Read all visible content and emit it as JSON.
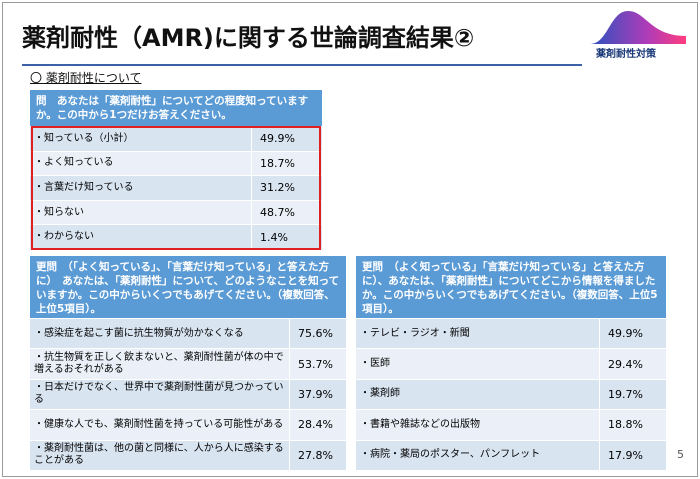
{
  "header": {
    "title": "薬剤耐性（AMR)に関する世論調査結果②",
    "logo_text": "薬剤耐性対策"
  },
  "section": "〇 薬剤耐性について",
  "tables": [
    {
      "question": "問　あなたは「薬剤耐性」についてどの程度知っていますか。この中から1つだけお答えください。",
      "rows": [
        [
          "・知っている（小計）",
          "49.9%"
        ],
        [
          "・よく知っている",
          "18.7%"
        ],
        [
          "・言葉だけ知っている",
          "31.2%"
        ],
        [
          "・知らない",
          "48.7%"
        ],
        [
          "・わからない",
          "1.4%"
        ]
      ]
    },
    {
      "question": "更問　（「よく知っている」、「言葉だけ知っている」と答えた方に）　あなたは、「薬剤耐性」について、どのようなことを知っていますか。この中からいくつでもあげてください。（複数回答、上位5項目）。",
      "rows": [
        [
          "・感染症を起こす菌に抗生物質が効かなくなる",
          "75.6%"
        ],
        [
          "・抗生物質を正しく飲まないと、薬剤耐性菌が体の中で増えるおそれがある",
          "53.7%"
        ],
        [
          "・日本だけでなく、世界中で薬剤耐性菌が見つかっている",
          "37.9%"
        ],
        [
          "・健康な人でも、薬剤耐性菌を持っている可能性がある",
          "28.4%"
        ],
        [
          "・薬剤耐性菌は、他の菌と同様に、人から人に感染することがある",
          "27.8%"
        ]
      ]
    },
    {
      "question": "更問　（よく知っている」「言葉だけ知っている」と答えた方に）、あなたは、「薬剤耐性」についてどこから情報を得ましたか。この中からいくつでもあげてください。（複数回答、上位5項目）。",
      "rows": [
        [
          "・テレビ・ラジオ・新聞",
          "49.9%"
        ],
        [
          "・医師",
          "29.4%"
        ],
        [
          "・薬剤師",
          "19.7%"
        ],
        [
          "・書籍や雑誌などの出版物",
          "18.8%"
        ],
        [
          "・病院・薬局のポスター、パンフレット",
          "17.9%"
        ]
      ]
    }
  ],
  "page_number": "5"
}
